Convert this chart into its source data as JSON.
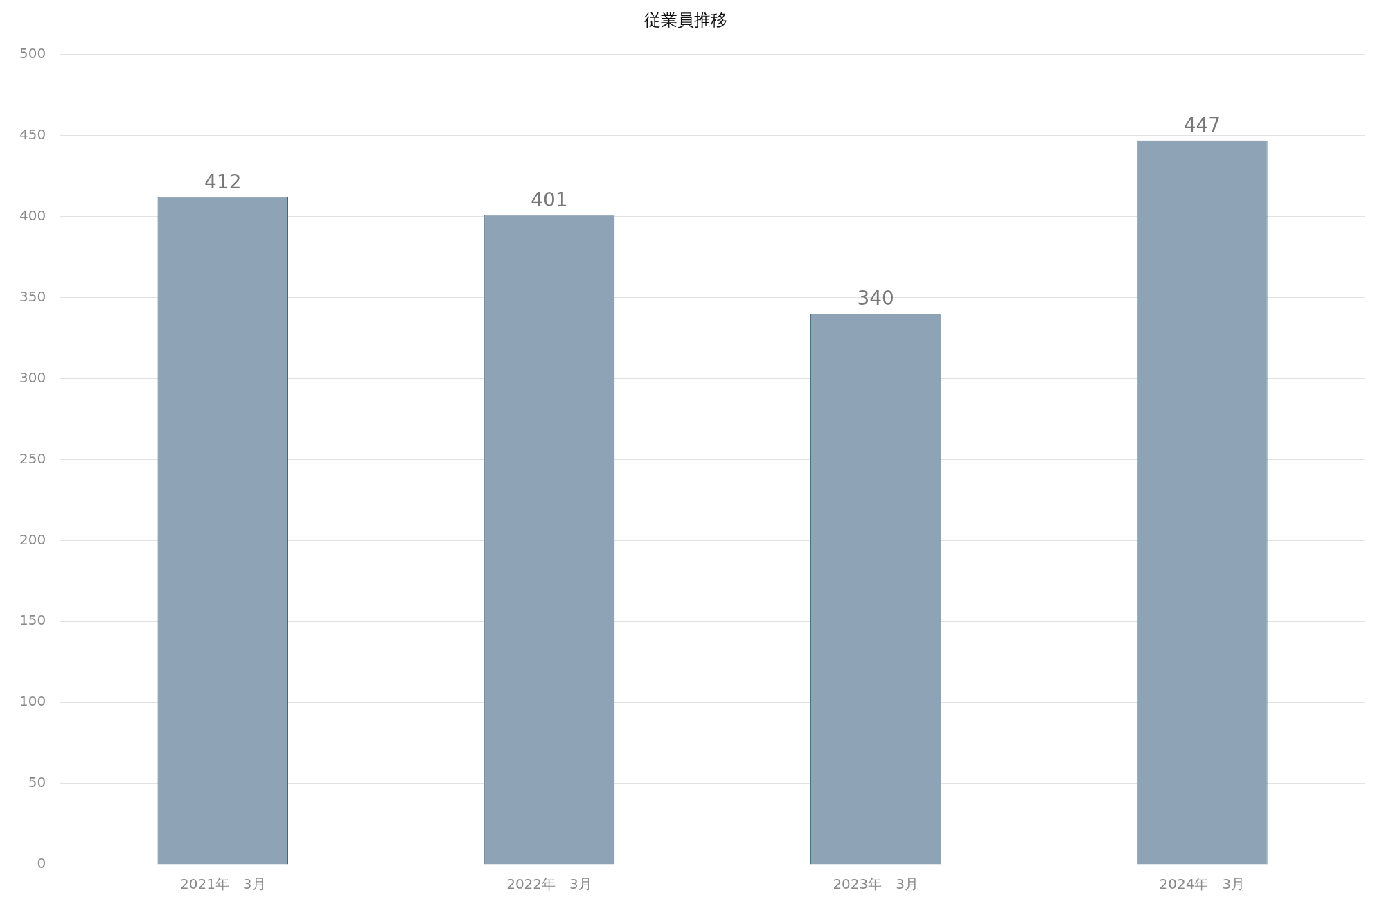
{
  "chart_data": {
    "type": "bar",
    "title": "従業員推移",
    "categories": [
      "2021年　3月",
      "2022年　3月",
      "2023年　3月",
      "2024年　3月"
    ],
    "values": [
      412,
      401,
      340,
      447
    ],
    "color": "#8ea3b5",
    "ylim": [
      0,
      500
    ],
    "yticks": [
      0,
      50,
      100,
      150,
      200,
      250,
      300,
      350,
      400,
      450,
      500
    ],
    "grid": "y",
    "data_labels": true
  }
}
